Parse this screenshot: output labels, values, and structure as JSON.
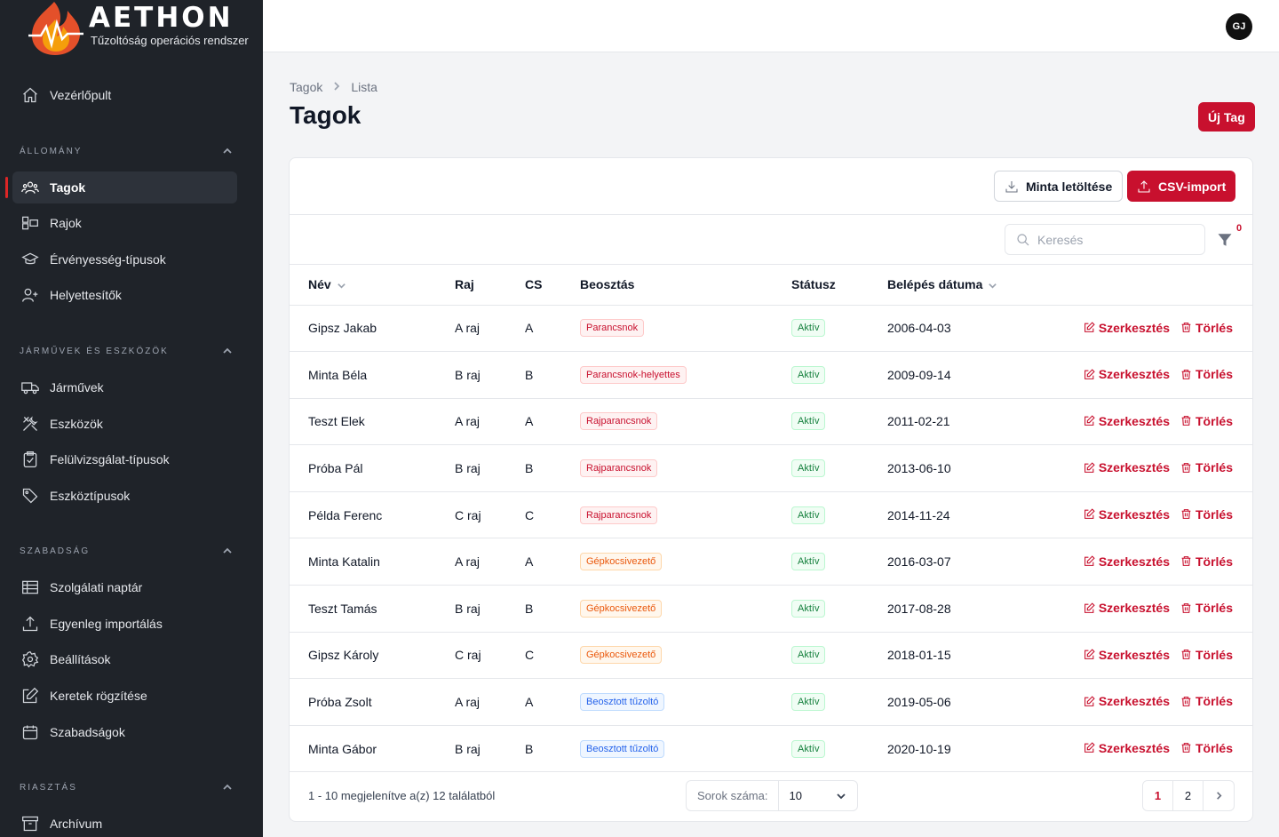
{
  "brand": {
    "name": "AETHON",
    "tagline": "Tűzoltóság operációs rendszer"
  },
  "colors": {
    "accent": "#c8102e",
    "sidebar_bg": "#1f2329",
    "active_item_bg": "#2d323a"
  },
  "sidebar": {
    "top_item": {
      "label": "Vezérlőpult",
      "icon": "home-icon"
    },
    "sections": [
      {
        "title": "ÁLLOMÁNY",
        "items": [
          {
            "label": "Tagok",
            "icon": "users-icon",
            "active": true
          },
          {
            "label": "Rajok",
            "icon": "groups-icon"
          },
          {
            "label": "Érvényesség-típusok",
            "icon": "certificate-icon"
          },
          {
            "label": "Helyettesítők",
            "icon": "user-plus-icon"
          }
        ]
      },
      {
        "title": "JÁRMŰVEK ÉS ESZKÖZÖK",
        "items": [
          {
            "label": "Járművek",
            "icon": "truck-icon"
          },
          {
            "label": "Eszközök",
            "icon": "tools-icon"
          },
          {
            "label": "Felülvizsgálat-típusok",
            "icon": "clipboard-check-icon"
          },
          {
            "label": "Eszköztípusok",
            "icon": "tag-icon"
          }
        ]
      },
      {
        "title": "SZABADSÁG",
        "items": [
          {
            "label": "Szolgálati naptár",
            "icon": "table-icon"
          },
          {
            "label": "Egyenleg importálás",
            "icon": "upload-icon"
          },
          {
            "label": "Beállítások",
            "icon": "gear-icon"
          },
          {
            "label": "Keretek rögzítése",
            "icon": "edit-icon"
          },
          {
            "label": "Szabadságok",
            "icon": "calendar-icon"
          }
        ]
      },
      {
        "title": "RIASZTÁS",
        "items": [
          {
            "label": "Archívum",
            "icon": "archive-icon"
          }
        ]
      }
    ]
  },
  "topbar": {
    "avatar_initials": "GJ"
  },
  "breadcrumb": [
    "Tagok",
    "Lista"
  ],
  "page": {
    "title": "Tagok",
    "new_button": "Új Tag"
  },
  "toolbar": {
    "sample_download": "Minta letöltése",
    "csv_import": "CSV-import"
  },
  "search": {
    "placeholder": "Keresés",
    "value": ""
  },
  "filter": {
    "active_count": "0"
  },
  "table": {
    "columns": [
      "Név",
      "Raj",
      "CS",
      "Beosztás",
      "Státusz",
      "Belépés dátuma"
    ],
    "edit_label": "Szerkesztés",
    "delete_label": "Törlés",
    "rows": [
      {
        "name": "Gipsz Jakab",
        "raj": "A raj",
        "cs": "A",
        "role": "Parancsnok",
        "role_color": "red",
        "status": "Aktív",
        "date": "2006-04-03"
      },
      {
        "name": "Minta Béla",
        "raj": "B raj",
        "cs": "B",
        "role": "Parancsnok-helyettes",
        "role_color": "red",
        "status": "Aktív",
        "date": "2009-09-14"
      },
      {
        "name": "Teszt Elek",
        "raj": "A raj",
        "cs": "A",
        "role": "Rajparancsnok",
        "role_color": "red",
        "status": "Aktív",
        "date": "2011-02-21"
      },
      {
        "name": "Próba Pál",
        "raj": "B raj",
        "cs": "B",
        "role": "Rajparancsnok",
        "role_color": "red",
        "status": "Aktív",
        "date": "2013-06-10"
      },
      {
        "name": "Példa Ferenc",
        "raj": "C raj",
        "cs": "C",
        "role": "Rajparancsnok",
        "role_color": "red",
        "status": "Aktív",
        "date": "2014-11-24"
      },
      {
        "name": "Minta Katalin",
        "raj": "A raj",
        "cs": "A",
        "role": "Gépkocsivezető",
        "role_color": "orange",
        "status": "Aktív",
        "date": "2016-03-07"
      },
      {
        "name": "Teszt Tamás",
        "raj": "B raj",
        "cs": "B",
        "role": "Gépkocsivezető",
        "role_color": "orange",
        "status": "Aktív",
        "date": "2017-08-28"
      },
      {
        "name": "Gipsz Károly",
        "raj": "C raj",
        "cs": "C",
        "role": "Gépkocsivezető",
        "role_color": "orange",
        "status": "Aktív",
        "date": "2018-01-15"
      },
      {
        "name": "Próba Zsolt",
        "raj": "A raj",
        "cs": "A",
        "role": "Beosztott tűzoltó",
        "role_color": "blue",
        "status": "Aktív",
        "date": "2019-05-06"
      },
      {
        "name": "Minta Gábor",
        "raj": "B raj",
        "cs": "B",
        "role": "Beosztott tűzoltó",
        "role_color": "blue",
        "status": "Aktív",
        "date": "2020-10-19"
      }
    ]
  },
  "footer": {
    "summary": "1 - 10 megjelenítve a(z) 12 találatból",
    "rows_label": "Sorok száma:",
    "rows_value": "10",
    "pages": [
      "1",
      "2"
    ],
    "current_page": "1"
  }
}
